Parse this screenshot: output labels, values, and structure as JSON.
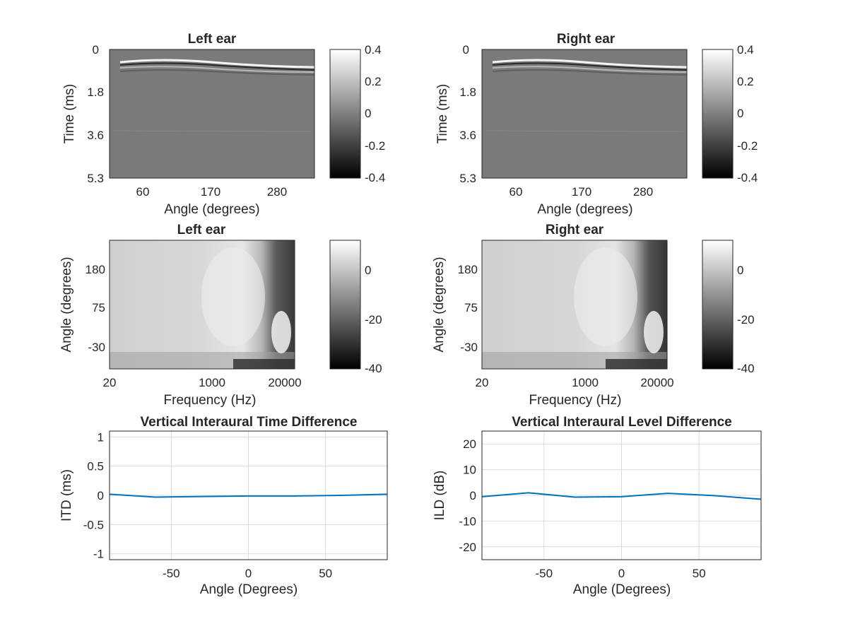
{
  "chart_data": [
    {
      "type": "heatmap",
      "title": "Left ear",
      "xlabel": "Angle (degrees)",
      "ylabel": "Time (ms)",
      "xticks": [
        "60",
        "170",
        "280"
      ],
      "yticks": [
        "0",
        "1.8",
        "3.6",
        "5.3"
      ],
      "colorbar": {
        "ticks": [
          "0.4",
          "0.2",
          "0",
          "-0.2",
          "-0.4"
        ],
        "range": [
          -0.4,
          0.4
        ]
      },
      "colormap": "gray"
    },
    {
      "type": "heatmap",
      "title": "Right ear",
      "xlabel": "Angle (degrees)",
      "ylabel": "Time (ms)",
      "xticks": [
        "60",
        "170",
        "280"
      ],
      "yticks": [
        "0",
        "1.8",
        "3.6",
        "5.3"
      ],
      "colorbar": {
        "ticks": [
          "0.4",
          "0.2",
          "0",
          "-0.2",
          "-0.4"
        ],
        "range": [
          -0.4,
          0.4
        ]
      },
      "colormap": "gray"
    },
    {
      "type": "heatmap",
      "title": "Left ear",
      "xlabel": "Frequency (Hz)",
      "ylabel": "Angle (degrees)",
      "xticks": [
        "20",
        "1000",
        "20000"
      ],
      "xscale": "log",
      "yticks": [
        "180",
        "75",
        "-30"
      ],
      "colorbar": {
        "ticks": [
          "0",
          "-20",
          "-40"
        ],
        "range": [
          -40,
          10
        ]
      },
      "colormap": "gray"
    },
    {
      "type": "heatmap",
      "title": "Right ear",
      "xlabel": "Frequency (Hz)",
      "ylabel": "Angle (degrees)",
      "xticks": [
        "20",
        "1000",
        "20000"
      ],
      "xscale": "log",
      "yticks": [
        "180",
        "75",
        "-30"
      ],
      "colorbar": {
        "ticks": [
          "0",
          "-20",
          "-40"
        ],
        "range": [
          -40,
          10
        ]
      },
      "colormap": "gray"
    },
    {
      "type": "line",
      "title": "Vertical Interaural Time Difference",
      "xlabel": "Angle (Degrees)",
      "ylabel": "ITD (ms)",
      "xlim": [
        -90,
        90
      ],
      "ylim": [
        -1.1,
        1.1
      ],
      "xticks": [
        -50,
        0,
        50
      ],
      "yticks": [
        1,
        0.5,
        0,
        -0.5,
        -1
      ],
      "yticklabels": [
        "1",
        "0.5",
        "0",
        "-0.5",
        "-1"
      ],
      "xticklabels": [
        "-50",
        "0",
        "50"
      ],
      "grid": true,
      "color": "#0072BD",
      "x": [
        -90,
        -60,
        -30,
        0,
        30,
        60,
        90
      ],
      "y": [
        0.02,
        -0.03,
        -0.02,
        -0.01,
        -0.01,
        0.0,
        0.02
      ]
    },
    {
      "type": "line",
      "title": "Vertical Interaural Level Difference",
      "xlabel": "Angle (Degrees)",
      "ylabel": "ILD (dB)",
      "xlim": [
        -90,
        90
      ],
      "ylim": [
        -25,
        25
      ],
      "xticks": [
        -50,
        0,
        50
      ],
      "yticks": [
        20,
        10,
        0,
        -10,
        -20
      ],
      "yticklabels": [
        "20",
        "10",
        "0",
        "-10",
        "-20"
      ],
      "xticklabels": [
        "-50",
        "0",
        "50"
      ],
      "grid": true,
      "color": "#0072BD",
      "x": [
        -90,
        -60,
        -30,
        0,
        30,
        60,
        90
      ],
      "y": [
        -0.5,
        1.0,
        -0.7,
        -0.5,
        0.8,
        -0.1,
        -1.5
      ]
    }
  ]
}
